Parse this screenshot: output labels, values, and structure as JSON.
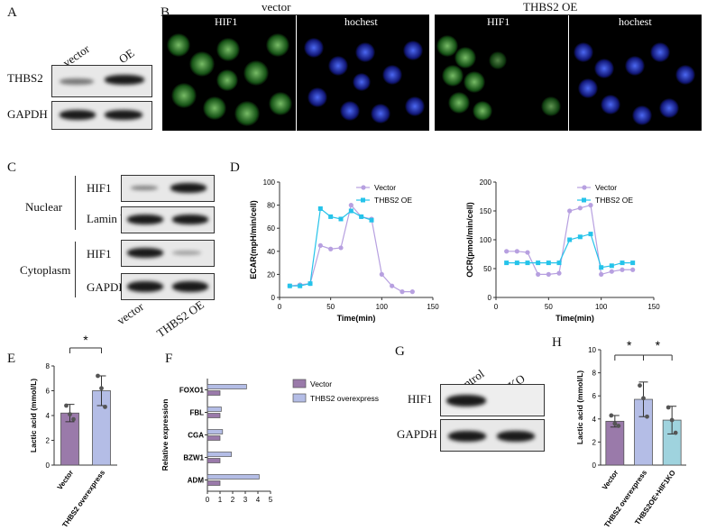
{
  "panels": {
    "A": "A",
    "B": "B",
    "C": "C",
    "D": "D",
    "E": "E",
    "F": "F",
    "G": "G",
    "H": "H"
  },
  "panelA": {
    "col1": "vector",
    "col2": "OE",
    "row1": "THBS2",
    "row2": "GAPDH"
  },
  "panelB": {
    "group1": "vector",
    "group2": "THBS2 OE",
    "hif": "HIF1",
    "hoechst": "hochest"
  },
  "panelC": {
    "nuclear": "Nuclear",
    "cytoplasm": "Cytoplasm",
    "hif1": "HIF1",
    "laminb": "Lamin b",
    "gapdh": "GAPDH",
    "col1": "vector",
    "col2": "THBS2 OE"
  },
  "panelG": {
    "col1": "control",
    "col2": "KO",
    "row1": "HIF1",
    "row2": "GAPDH"
  },
  "colors": {
    "vector_line": "#b7a0e0",
    "oe_line": "#25c3ea",
    "vector_bar": "#9a7aaa",
    "thbs2_bar": "#b4bde6",
    "ko_bar": "#9fd3de"
  },
  "chart_data": [
    {
      "id": "D-left",
      "type": "line",
      "ylabel": "ECAR(mpH/min/cell)",
      "xlabel": "Time(min)",
      "xlim": [
        0,
        150
      ],
      "ylim": [
        0,
        100
      ],
      "xticks": [
        0,
        50,
        100,
        150
      ],
      "yticks": [
        0,
        20,
        40,
        60,
        80,
        100
      ],
      "legend": "top-right",
      "series": [
        {
          "name": "Vector",
          "x": [
            10,
            20,
            30,
            40,
            50,
            60,
            70,
            80,
            90,
            100,
            110,
            120,
            130
          ],
          "y": [
            10,
            11,
            12,
            45,
            42,
            43,
            80,
            70,
            68,
            20,
            10,
            5,
            5
          ]
        },
        {
          "name": "THBS2 OE",
          "x": [
            10,
            20,
            30,
            40,
            50,
            60,
            70,
            80,
            90
          ],
          "y": [
            10,
            10,
            12,
            77,
            70,
            68,
            75,
            70,
            67
          ]
        }
      ]
    },
    {
      "id": "D-right",
      "type": "line",
      "ylabel": "OCR(pmol/min/cell)",
      "xlabel": "Time(min)",
      "xlim": [
        0,
        150
      ],
      "ylim": [
        0,
        200
      ],
      "xticks": [
        0,
        50,
        100,
        150
      ],
      "yticks": [
        0,
        50,
        100,
        150,
        200
      ],
      "legend": "top-right",
      "series": [
        {
          "name": "Vector",
          "x": [
            10,
            20,
            30,
            40,
            50,
            60,
            70,
            80,
            90,
            100,
            110,
            120,
            130
          ],
          "y": [
            80,
            80,
            78,
            40,
            40,
            42,
            150,
            155,
            160,
            40,
            45,
            48,
            48
          ]
        },
        {
          "name": "THBS2 OE",
          "x": [
            10,
            20,
            30,
            40,
            50,
            60,
            70,
            80,
            90,
            100,
            110,
            120,
            130
          ],
          "y": [
            60,
            60,
            60,
            60,
            60,
            60,
            100,
            105,
            110,
            52,
            55,
            60,
            60
          ]
        }
      ]
    },
    {
      "id": "E",
      "type": "bar",
      "ylabel": "Lactic acid (mmol/L)",
      "categories": [
        "Vector",
        "THBS2 overexpress"
      ],
      "values": [
        4.2,
        6.0
      ],
      "errors": [
        0.7,
        1.2
      ],
      "ylim": [
        0,
        8
      ],
      "yticks": [
        0,
        2,
        4,
        6,
        8
      ],
      "significance": "*",
      "points": [
        [
          4.8,
          4.1,
          3.7
        ],
        [
          7.2,
          6.2,
          4.7
        ]
      ]
    },
    {
      "id": "F",
      "type": "bar",
      "orientation": "horizontal",
      "xlabel": "",
      "ylabel": "Relative expression",
      "categories": [
        "FOXO1",
        "FBL",
        "CGA",
        "BZW1",
        "ADM"
      ],
      "series": [
        {
          "name": "Vector",
          "values": [
            1,
            1,
            1,
            1,
            1
          ]
        },
        {
          "name": "THBS2 overexpress",
          "values": [
            3.1,
            1.1,
            1.2,
            1.9,
            4.1
          ]
        }
      ],
      "xlim": [
        0,
        5
      ],
      "xticks": [
        0,
        1,
        2,
        3,
        4,
        5
      ],
      "legend": "right"
    },
    {
      "id": "H",
      "type": "bar",
      "ylabel": "Lactic acid (mmol/L)",
      "categories": [
        "Vector",
        "THBS2 overexpress",
        "THBS2OE+HIF1KO"
      ],
      "values": [
        3.8,
        5.7,
        3.9
      ],
      "errors": [
        0.5,
        1.5,
        1.2
      ],
      "ylim": [
        0,
        10
      ],
      "yticks": [
        0,
        2,
        4,
        6,
        8,
        10
      ],
      "significance": [
        "*",
        "*"
      ],
      "points": [
        [
          4.3,
          3.6,
          3.4
        ],
        [
          6.9,
          5.8,
          4.2
        ],
        [
          5.0,
          3.9,
          2.8
        ]
      ]
    }
  ]
}
